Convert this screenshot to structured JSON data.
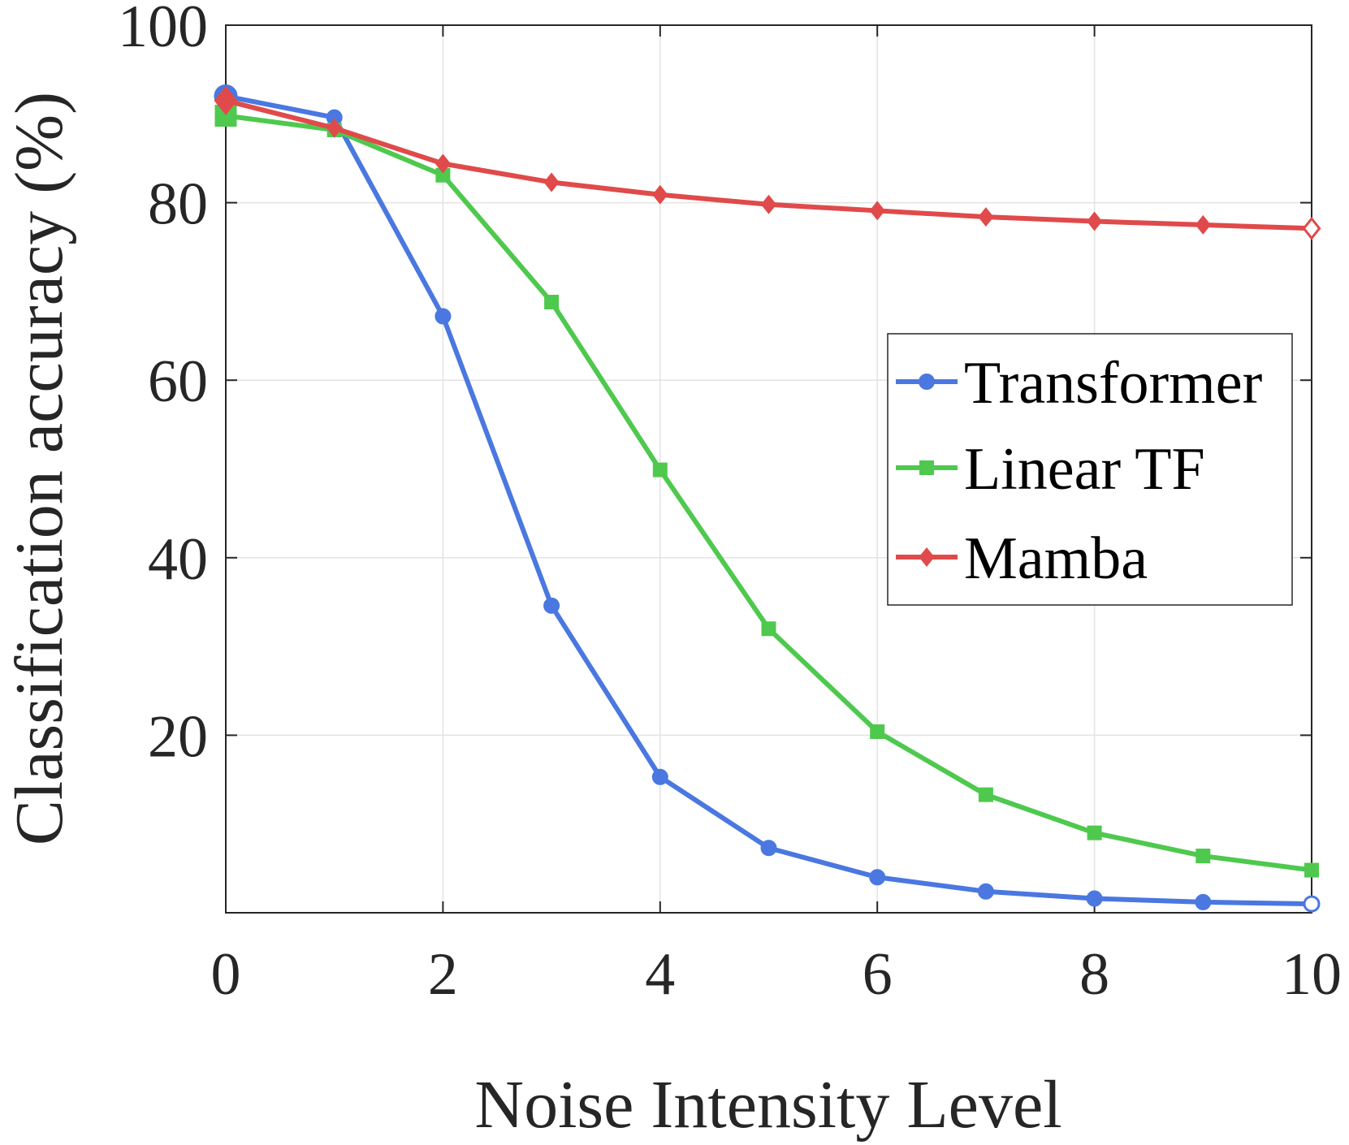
{
  "chart_data": {
    "type": "line",
    "xlabel": "Noise Intensity Level",
    "ylabel": "Classification accuracy (%)",
    "xlim": [
      0,
      10
    ],
    "ylim": [
      0,
      100
    ],
    "xticks": [
      0,
      2,
      4,
      6,
      8,
      10
    ],
    "yticks": [
      20,
      40,
      60,
      80,
      100
    ],
    "grid": true,
    "legend_position": "center-right",
    "x": [
      0,
      1,
      2,
      3,
      4,
      5,
      6,
      7,
      8,
      9,
      10
    ],
    "series": [
      {
        "name": "Transformer",
        "color": "#4a78e0",
        "marker": "circle",
        "values": [
          92.0,
          89.6,
          67.2,
          34.6,
          15.3,
          7.3,
          4.0,
          2.4,
          1.6,
          1.2,
          1.0
        ]
      },
      {
        "name": "Linear TF",
        "color": "#4ec94e",
        "marker": "square",
        "values": [
          89.8,
          88.2,
          83.1,
          68.8,
          49.9,
          32.0,
          20.4,
          13.3,
          9.0,
          6.4,
          4.8
        ]
      },
      {
        "name": "Mamba",
        "color": "#e04a4a",
        "marker": "diamond",
        "values": [
          91.5,
          88.4,
          84.4,
          82.3,
          80.9,
          79.8,
          79.1,
          78.4,
          77.9,
          77.5,
          77.1
        ]
      }
    ]
  }
}
